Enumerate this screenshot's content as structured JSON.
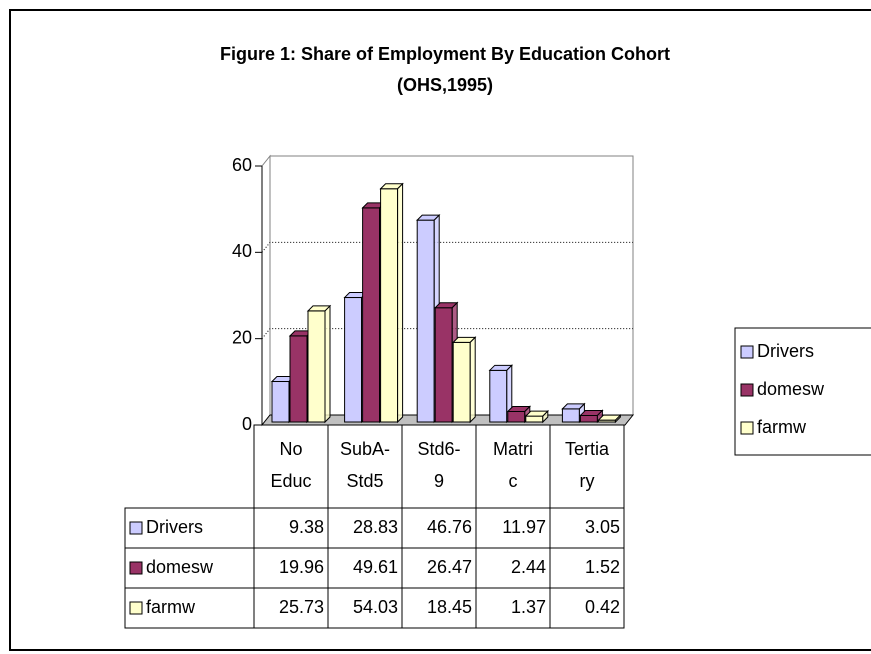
{
  "chart_data": {
    "type": "bar3d",
    "title": [
      "Figure 1:  Share of Employment By Education Cohort",
      "(OHS,1995)"
    ],
    "categories": [
      [
        "No",
        "Educ"
      ],
      [
        "SubA-",
        "Std5"
      ],
      [
        "Std6-",
        "9"
      ],
      [
        "Matri",
        "c"
      ],
      [
        "Tertia",
        "ry"
      ]
    ],
    "series": [
      {
        "name": "Drivers",
        "color": "#ccccff",
        "values": [
          9.38,
          28.83,
          46.76,
          11.97,
          3.05
        ]
      },
      {
        "name": "domesw",
        "color": "#993366",
        "values": [
          19.96,
          49.61,
          26.47,
          2.44,
          1.52
        ]
      },
      {
        "name": "farmw",
        "color": "#ffffcc",
        "values": [
          25.73,
          54.03,
          18.45,
          1.37,
          0.42
        ]
      }
    ],
    "ylim": [
      0,
      60
    ],
    "yticks": [
      0,
      20,
      40,
      60
    ],
    "grid": true,
    "legend": "right",
    "data_table": true
  }
}
